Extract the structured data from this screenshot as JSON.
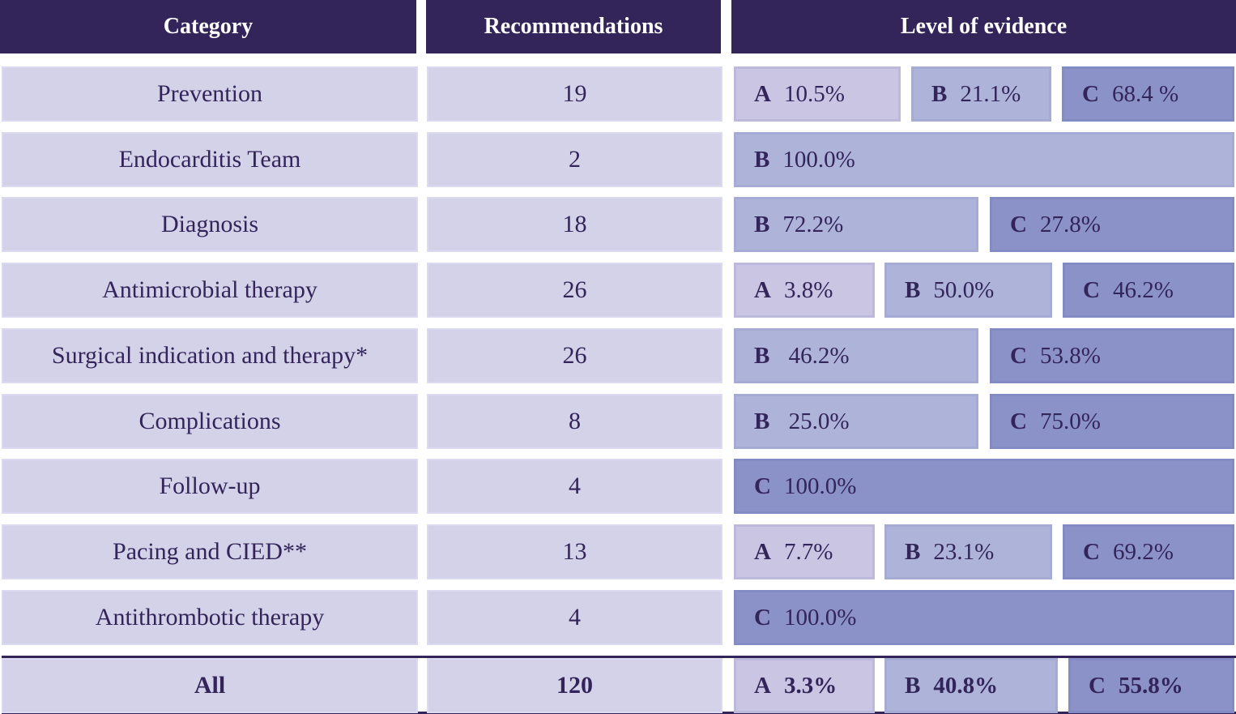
{
  "header": {
    "category": "Category",
    "recommendations": "Recommendations",
    "level": "Level of evidence"
  },
  "colors": {
    "header": "#33245a",
    "cell": "#d4d2e8",
    "A": "#c9c5e3",
    "B": "#aeb3da",
    "C": "#8a92c8"
  },
  "rows": [
    {
      "category": "Prevention",
      "count": "19",
      "layout": "abc1",
      "levels": [
        {
          "grade": "A",
          "value": "10.5%"
        },
        {
          "grade": "B",
          "value": "21.1%"
        },
        {
          "grade": "C",
          "value": "68.4 %"
        }
      ]
    },
    {
      "category": "Endocarditis Team",
      "count": "2",
      "layout": "full",
      "levels": [
        {
          "grade": "B",
          "value": "100.0%"
        }
      ]
    },
    {
      "category": "Diagnosis",
      "count": "18",
      "layout": "bc",
      "levels": [
        {
          "grade": "B",
          "value": "72.2%"
        },
        {
          "grade": "C",
          "value": "27.8%"
        }
      ]
    },
    {
      "category": "Antimicrobial therapy",
      "count": "26",
      "layout": "abc2",
      "levels": [
        {
          "grade": "A",
          "value": "3.8%"
        },
        {
          "grade": "B",
          "value": "50.0%"
        },
        {
          "grade": "C",
          "value": "46.2%"
        }
      ]
    },
    {
      "category": "Surgical indication and therapy*",
      "count": "26",
      "layout": "bc",
      "levels": [
        {
          "grade": "B",
          "value": " 46.2%"
        },
        {
          "grade": "C",
          "value": "53.8%"
        }
      ]
    },
    {
      "category": "Complications",
      "count": "8",
      "layout": "bc",
      "levels": [
        {
          "grade": "B",
          "value": " 25.0%"
        },
        {
          "grade": "C",
          "value": "75.0%"
        }
      ]
    },
    {
      "category": "Follow-up",
      "count": "4",
      "layout": "full",
      "levels": [
        {
          "grade": "C",
          "value": "100.0%"
        }
      ]
    },
    {
      "category": "Pacing and CIED**",
      "count": "13",
      "layout": "abc2",
      "levels": [
        {
          "grade": "A",
          "value": "7.7%"
        },
        {
          "grade": "B",
          "value": "23.1%"
        },
        {
          "grade": "C",
          "value": "69.2%"
        }
      ]
    },
    {
      "category": "Antithrombotic therapy",
      "count": "4",
      "layout": "full",
      "levels": [
        {
          "grade": "C",
          "value": "100.0%"
        }
      ]
    }
  ],
  "total": {
    "category": "All",
    "count": "120",
    "levels": [
      {
        "grade": "A",
        "value": "3.3%"
      },
      {
        "grade": "B",
        "value": "40.8%"
      },
      {
        "grade": "C",
        "value": "55.8%"
      }
    ]
  }
}
